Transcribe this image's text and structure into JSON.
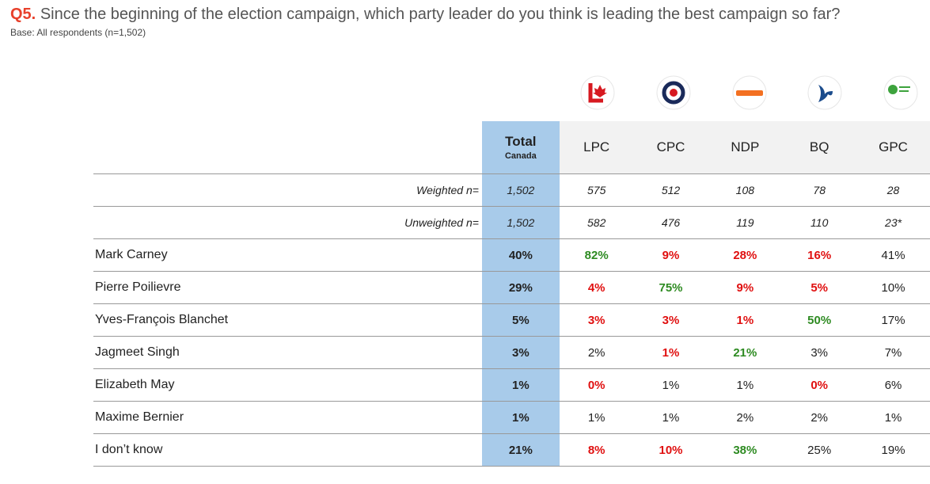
{
  "title": {
    "number": "Q5.",
    "text": "Since the beginning of the election campaign, which party leader do you think is leading the best campaign so far?"
  },
  "base": "Base: All respondents (n=1,502)",
  "table": {
    "header": {
      "total": "Total",
      "total_sub": "Canada",
      "columns": [
        "LPC",
        "CPC",
        "NDP",
        "BQ",
        "GPC"
      ]
    },
    "rows": [
      {
        "label": "Weighted n=",
        "values": [
          "1,502",
          "575",
          "512",
          "108",
          "78",
          "28"
        ]
      },
      {
        "label": "Unweighted n=",
        "values": [
          "1,502",
          "582",
          "476",
          "119",
          "110",
          "23*"
        ]
      },
      {
        "label": "Mark Carney",
        "values": [
          "40%",
          "82%",
          "9%",
          "28%",
          "16%",
          "41%"
        ]
      },
      {
        "label": "Pierre Poilievre",
        "values": [
          "29%",
          "4%",
          "75%",
          "9%",
          "5%",
          "10%"
        ]
      },
      {
        "label": "Yves-François Blanchet",
        "values": [
          "5%",
          "3%",
          "3%",
          "1%",
          "50%",
          "17%"
        ]
      },
      {
        "label": "Jagmeet Singh",
        "values": [
          "3%",
          "2%",
          "1%",
          "21%",
          "3%",
          "7%"
        ]
      },
      {
        "label": "Elizabeth May",
        "values": [
          "1%",
          "0%",
          "1%",
          "1%",
          "0%",
          "6%"
        ]
      },
      {
        "label": "Maxime Bernier",
        "values": [
          "1%",
          "1%",
          "1%",
          "2%",
          "2%",
          "1%"
        ]
      },
      {
        "label": "I don’t know",
        "values": [
          "21%",
          "8%",
          "10%",
          "38%",
          "25%",
          "19%"
        ]
      }
    ]
  }
}
